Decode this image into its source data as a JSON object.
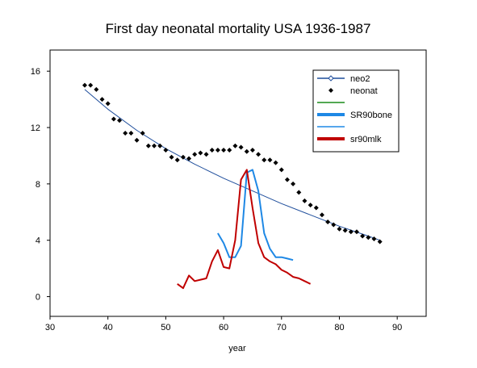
{
  "chart_data": {
    "type": "line",
    "title": "First day neonatal mortality USA 1936-1987",
    "xlabel": "year",
    "ylabel": "",
    "xlim": [
      30,
      95
    ],
    "ylim": [
      -1.4,
      17.5
    ],
    "xticks": [
      "30",
      "40",
      "50",
      "60",
      "70",
      "80",
      "90"
    ],
    "yticks": [
      "0",
      "4",
      "8",
      "12",
      "16"
    ],
    "grid": false,
    "legend_position": "top-right",
    "legend": [
      {
        "label": "neo2",
        "color": "#1f4e9c",
        "style": "line-diamond"
      },
      {
        "label": "neonat",
        "color": "#000000",
        "style": "diamond"
      },
      {
        "label": "",
        "color": "#1a8c1a",
        "style": "line"
      },
      {
        "label": "SR90bone",
        "color": "#1e88e5",
        "style": "thick-line"
      },
      {
        "label": "",
        "color": "#1e88e5",
        "style": "line"
      },
      {
        "label": "sr90mlk",
        "color": "#c00000",
        "style": "thick-line"
      }
    ],
    "series": [
      {
        "name": "neonat",
        "kind": "points",
        "color": "#000000",
        "x": [
          36,
          37,
          38,
          39,
          40,
          41,
          42,
          43,
          44,
          45,
          46,
          47,
          48,
          49,
          50,
          51,
          52,
          53,
          54,
          55,
          56,
          57,
          58,
          59,
          60,
          61,
          62,
          63,
          64,
          65,
          66,
          67,
          68,
          69,
          70,
          71,
          72,
          73,
          74,
          75,
          76,
          77,
          78,
          79,
          80,
          81,
          82,
          83,
          84,
          85,
          86,
          87
        ],
        "y": [
          15.0,
          15.0,
          14.7,
          14.0,
          13.7,
          12.6,
          12.5,
          11.6,
          11.6,
          11.1,
          11.6,
          10.7,
          10.7,
          10.7,
          10.4,
          9.9,
          9.7,
          9.9,
          9.8,
          10.1,
          10.2,
          10.1,
          10.4,
          10.4,
          10.4,
          10.4,
          10.7,
          10.6,
          10.3,
          10.4,
          10.1,
          9.7,
          9.7,
          9.5,
          9.0,
          8.3,
          8.0,
          7.4,
          6.8,
          6.5,
          6.3,
          5.8,
          5.3,
          5.1,
          4.8,
          4.7,
          4.6,
          4.6,
          4.3,
          4.2,
          4.1,
          3.9
        ]
      },
      {
        "name": "neo2",
        "kind": "line",
        "color": "#1f4e9c",
        "x": [
          36,
          40,
          45,
          50,
          55,
          60,
          65,
          70,
          75,
          80,
          85,
          87
        ],
        "y": [
          14.7,
          13.3,
          11.8,
          10.5,
          9.4,
          8.4,
          7.5,
          6.6,
          5.8,
          5.0,
          4.3,
          4.0
        ]
      },
      {
        "name": "SR90bone",
        "kind": "line",
        "color": "#1e88e5",
        "x": [
          59,
          60,
          61,
          62,
          63,
          64,
          65,
          66,
          67,
          68,
          69,
          70,
          71,
          72
        ],
        "y": [
          4.5,
          3.8,
          2.8,
          2.8,
          3.6,
          8.8,
          9.0,
          7.5,
          4.5,
          3.4,
          2.8,
          2.8,
          2.7,
          2.6
        ]
      },
      {
        "name": "sr90mlk",
        "kind": "line",
        "color": "#c00000",
        "x": [
          52,
          53,
          54,
          55,
          56,
          57,
          58,
          59,
          60,
          61,
          62,
          63,
          64,
          65,
          66,
          67,
          68,
          69,
          70,
          71,
          72,
          73,
          74,
          75
        ],
        "y": [
          0.9,
          0.6,
          1.5,
          1.1,
          1.2,
          1.3,
          2.5,
          3.3,
          2.1,
          2.0,
          4.0,
          8.3,
          9.0,
          6.3,
          3.8,
          2.8,
          2.5,
          2.3,
          1.9,
          1.7,
          1.4,
          1.3,
          1.1,
          0.9
        ]
      }
    ]
  }
}
